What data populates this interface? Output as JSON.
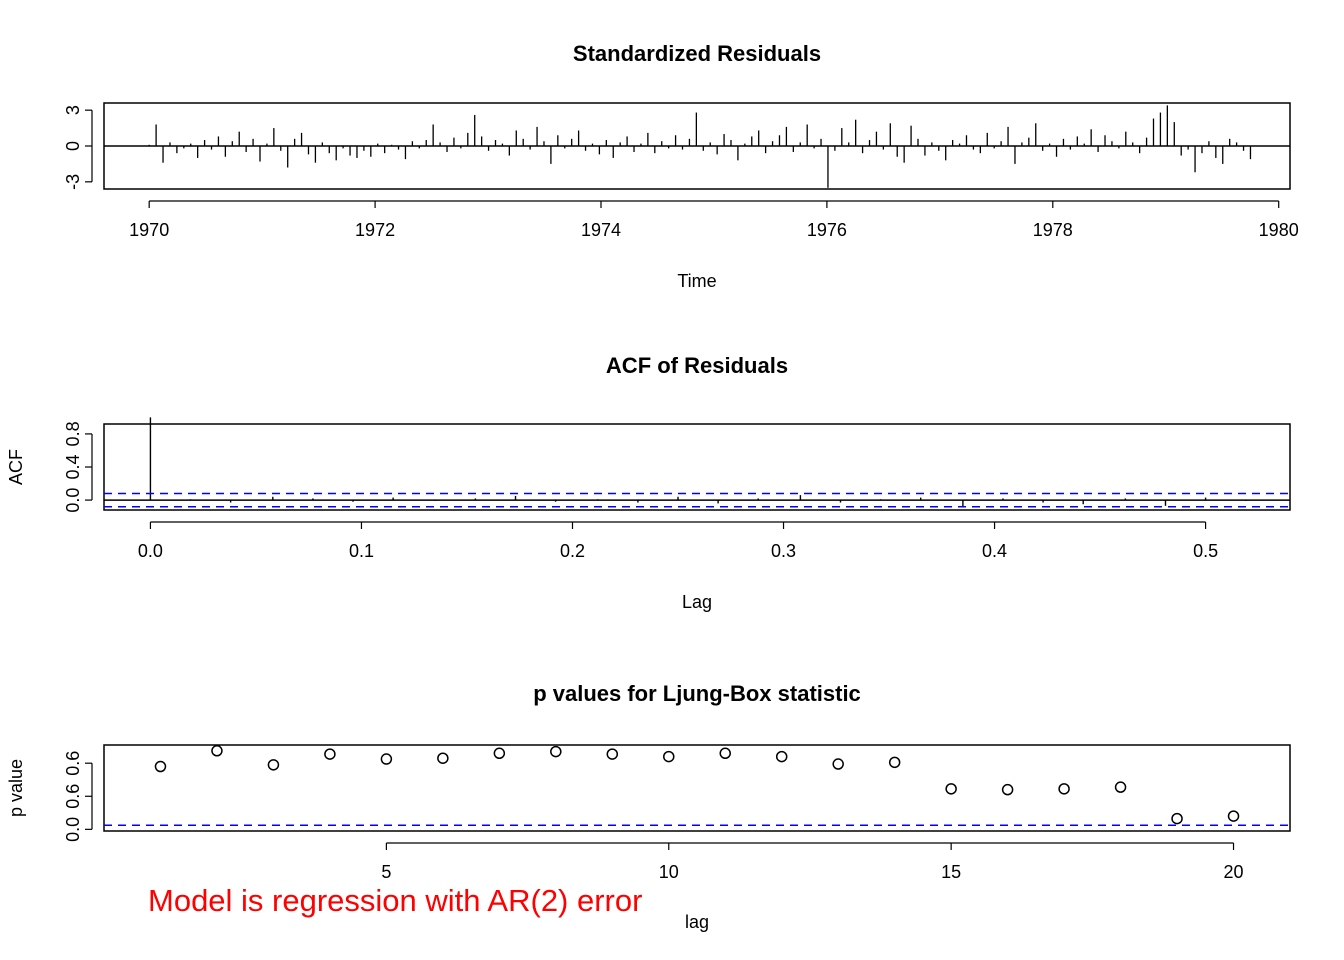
{
  "chart_data": [
    {
      "type": "bar",
      "title": "Standardized Residuals",
      "xlabel": "Time",
      "ylabel": "",
      "xlim": [
        1969.6,
        1980.1
      ],
      "ylim": [
        -3.6,
        3.6
      ],
      "x_ticks": [
        "1970",
        "1972",
        "1974",
        "1976",
        "1978",
        "1980"
      ],
      "y_ticks": [
        "-3",
        "0",
        "3"
      ],
      "series": [
        {
          "start": 1970.0,
          "frequency": 52,
          "reference_line": 0,
          "values": [
            0.1,
            1.8,
            -1.4,
            0.3,
            -0.6,
            -0.2,
            0.2,
            -1.0,
            0.5,
            -0.3,
            0.8,
            -0.9,
            0.4,
            1.2,
            -0.5,
            0.6,
            -1.3,
            0.2,
            1.5,
            -0.4,
            -1.8,
            0.6,
            1.1,
            -0.7,
            -1.4,
            0.3,
            -0.6,
            -1.2,
            -0.2,
            -0.8,
            -1.0,
            -0.4,
            -0.9,
            0.2,
            -0.6,
            0.1,
            -0.3,
            -1.1,
            0.4,
            -0.2,
            0.5,
            1.8,
            0.3,
            -0.5,
            0.7,
            -0.2,
            1.1,
            2.6,
            0.8,
            -0.4,
            0.5,
            0.2,
            -0.8,
            1.3,
            0.6,
            -0.3,
            1.6,
            0.4,
            -1.5,
            0.9,
            -0.2,
            0.6,
            1.3,
            -0.4,
            0.2,
            -0.7,
            0.5,
            -1.0,
            0.3,
            0.8,
            -0.5,
            0.2,
            1.1,
            -0.6,
            0.4,
            -0.2,
            0.9,
            -0.3,
            0.6,
            2.8,
            -0.4,
            0.3,
            -0.7,
            1.0,
            0.5,
            -1.2,
            0.2,
            0.8,
            1.3,
            -0.6,
            0.4,
            0.9,
            1.6,
            -0.5,
            0.3,
            1.8,
            -0.2,
            0.6,
            -3.5,
            -0.4,
            1.5,
            0.3,
            2.2,
            -0.6,
            0.5,
            1.2,
            -0.3,
            1.9,
            -0.9,
            -1.4,
            1.7,
            0.6,
            -0.8,
            0.3,
            -0.4,
            -1.2,
            0.5,
            0.2,
            0.9,
            -0.3,
            -0.6,
            1.1,
            -0.2,
            0.4,
            1.6,
            -1.5,
            0.3,
            0.7,
            1.9,
            -0.4,
            0.2,
            -0.9,
            0.6,
            -0.3,
            0.8,
            0.2,
            1.4,
            -0.5,
            0.9,
            0.4,
            -0.2,
            1.2,
            0.3,
            -0.6,
            0.7,
            2.3,
            2.8,
            3.4,
            2.0,
            -0.8,
            -0.3,
            -2.2,
            -0.6,
            0.4,
            -1.0,
            -1.5,
            0.6,
            0.3,
            -0.4,
            -1.1
          ]
        }
      ]
    },
    {
      "type": "bar",
      "title": "ACF of Residuals",
      "xlabel": "Lag",
      "ylabel": "ACF",
      "xlim": [
        -0.022,
        0.54
      ],
      "ylim": [
        -0.12,
        0.92
      ],
      "x_ticks": [
        "0.0",
        "0.1",
        "0.2",
        "0.3",
        "0.4",
        "0.5"
      ],
      "y_ticks": [
        "0.0",
        "0.4",
        "0.8"
      ],
      "series": [
        {
          "name": "ACF",
          "x": [
            0.0,
            0.019,
            0.038,
            0.058,
            0.077,
            0.096,
            0.115,
            0.135,
            0.154,
            0.173,
            0.192,
            0.212,
            0.231,
            0.25,
            0.269,
            0.288,
            0.308,
            0.327,
            0.346,
            0.365,
            0.385,
            0.404,
            0.423,
            0.442,
            0.462,
            0.481,
            0.5,
            0.519
          ],
          "values": [
            1.0,
            0.01,
            -0.03,
            0.04,
            0.02,
            -0.02,
            0.03,
            -0.01,
            0.02,
            0.05,
            -0.02,
            0.01,
            -0.03,
            0.04,
            -0.04,
            0.02,
            0.06,
            -0.03,
            0.01,
            0.03,
            -0.09,
            0.02,
            -0.03,
            -0.05,
            0.02,
            -0.07,
            0.03,
            -0.01
          ]
        }
      ],
      "confidence_band": [
        -0.08,
        0.08
      ]
    },
    {
      "type": "scatter",
      "title": "p values for Ljung-Box statistic",
      "xlabel": "lag",
      "ylabel": "p value",
      "xlim": [
        0.0,
        21.0
      ],
      "ylim": [
        -0.02,
        1.02
      ],
      "x_ticks": [
        "5",
        "10",
        "15",
        "20"
      ],
      "y_ticks": [
        "0.0",
        "0.6",
        "0.6"
      ],
      "series": [
        {
          "name": "p value",
          "x": [
            1,
            2,
            3,
            4,
            5,
            6,
            7,
            8,
            9,
            10,
            11,
            12,
            13,
            14,
            15,
            16,
            17,
            18,
            19,
            20
          ],
          "values": [
            0.76,
            0.95,
            0.78,
            0.91,
            0.85,
            0.86,
            0.92,
            0.94,
            0.91,
            0.88,
            0.92,
            0.88,
            0.79,
            0.81,
            0.49,
            0.48,
            0.49,
            0.51,
            0.13,
            0.16
          ]
        }
      ],
      "reference_line": 0.05
    }
  ],
  "annotation": {
    "text": "Model is regression with AR(2) error",
    "color": "#ff0000"
  },
  "colors": {
    "axis": "#000000",
    "reference": "#0000ff"
  }
}
